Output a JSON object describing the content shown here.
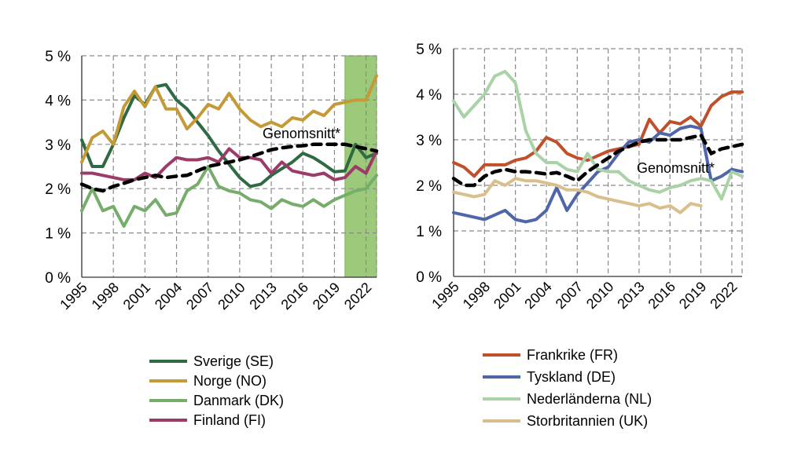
{
  "chart_data": [
    {
      "type": "line",
      "panel": "left",
      "ylim": [
        0,
        5
      ],
      "y_ticks": [
        "0 %",
        "1 %",
        "2 %",
        "3 %",
        "4 %",
        "5 %"
      ],
      "x_tick_labels": [
        "1995",
        "1998",
        "2001",
        "2004",
        "2007",
        "2010",
        "2013",
        "2016",
        "2019",
        "2022"
      ],
      "grid": true,
      "shaded_region": {
        "from": 2020,
        "to": 2023,
        "color": "#8cc063"
      },
      "annotation": "Genomsnitt*",
      "legend_position": "bottom",
      "x": [
        1995,
        1996,
        1997,
        1998,
        1999,
        2000,
        2001,
        2002,
        2003,
        2004,
        2005,
        2006,
        2007,
        2008,
        2009,
        2010,
        2011,
        2012,
        2013,
        2014,
        2015,
        2016,
        2017,
        2018,
        2019,
        2020,
        2021,
        2022,
        2023
      ],
      "series": [
        {
          "name": "Sverige (SE)",
          "color": "#2e6b43",
          "values": [
            3.1,
            2.5,
            2.5,
            3.0,
            3.6,
            4.1,
            3.9,
            4.3,
            4.35,
            4.0,
            3.8,
            3.5,
            3.2,
            2.85,
            2.55,
            2.25,
            2.05,
            2.1,
            2.3,
            2.45,
            2.6,
            2.8,
            2.7,
            2.55,
            2.38,
            2.4,
            3.0,
            2.7,
            2.8
          ]
        },
        {
          "name": "Norge (NO)",
          "color": "#c39a35",
          "values": [
            2.6,
            3.15,
            3.3,
            3.0,
            3.85,
            4.2,
            3.85,
            4.3,
            3.8,
            3.8,
            3.35,
            3.6,
            3.9,
            3.8,
            4.15,
            3.8,
            3.55,
            3.4,
            3.5,
            3.4,
            3.6,
            3.55,
            3.75,
            3.65,
            3.9,
            3.95,
            4.0,
            4.0,
            4.55
          ]
        },
        {
          "name": "Danmark (DK)",
          "color": "#76ad6b",
          "values": [
            1.5,
            2.0,
            1.5,
            1.6,
            1.15,
            1.6,
            1.5,
            1.75,
            1.4,
            1.45,
            1.95,
            2.1,
            2.5,
            2.05,
            1.95,
            1.9,
            1.75,
            1.7,
            1.55,
            1.75,
            1.65,
            1.6,
            1.75,
            1.6,
            1.75,
            1.85,
            1.95,
            2.0,
            2.3
          ]
        },
        {
          "name": "Finland (FI)",
          "color": "#9b3b6a",
          "values": [
            2.35,
            2.35,
            2.3,
            2.25,
            2.2,
            2.2,
            2.35,
            2.25,
            2.5,
            2.7,
            2.65,
            2.65,
            2.7,
            2.6,
            2.9,
            2.7,
            2.7,
            2.65,
            2.35,
            2.6,
            2.4,
            2.35,
            2.3,
            2.35,
            2.2,
            2.25,
            2.5,
            2.35,
            2.85
          ]
        }
      ],
      "average": {
        "values": [
          2.1,
          2.0,
          1.95,
          2.05,
          2.12,
          2.2,
          2.25,
          2.3,
          2.25,
          2.28,
          2.3,
          2.4,
          2.5,
          2.55,
          2.6,
          2.65,
          2.72,
          2.8,
          2.88,
          2.92,
          2.95,
          2.97,
          3.0,
          3.0,
          3.0,
          3.0,
          2.95,
          2.9,
          2.85
        ]
      }
    },
    {
      "type": "line",
      "panel": "right",
      "ylim": [
        0,
        5
      ],
      "y_ticks": [
        "0 %",
        "1 %",
        "2 %",
        "3 %",
        "4 %",
        "5 %"
      ],
      "x_tick_labels": [
        "1995",
        "1998",
        "2001",
        "2004",
        "2007",
        "2010",
        "2013",
        "2016",
        "2019",
        "2022"
      ],
      "grid": true,
      "annotation": "Genomsnitt*",
      "legend_position": "bottom",
      "x": [
        1995,
        1996,
        1997,
        1998,
        1999,
        2000,
        2001,
        2002,
        2003,
        2004,
        2005,
        2006,
        2007,
        2008,
        2009,
        2010,
        2011,
        2012,
        2013,
        2014,
        2015,
        2016,
        2017,
        2018,
        2019,
        2020,
        2021,
        2022,
        2023
      ],
      "series": [
        {
          "name": "Frankrike (FR)",
          "color": "#c0502c",
          "values": [
            2.5,
            2.4,
            2.2,
            2.45,
            2.45,
            2.45,
            2.55,
            2.6,
            2.75,
            3.05,
            2.95,
            2.7,
            2.6,
            2.55,
            2.65,
            2.75,
            2.8,
            2.85,
            2.9,
            3.45,
            3.15,
            3.4,
            3.35,
            3.5,
            3.3,
            3.75,
            3.95,
            4.05,
            4.05
          ]
        },
        {
          "name": "Tyskland (DE)",
          "color": "#4f67a8",
          "values": [
            1.4,
            1.35,
            1.3,
            1.25,
            1.35,
            1.45,
            1.25,
            1.2,
            1.25,
            1.45,
            1.95,
            1.45,
            1.8,
            2.05,
            2.3,
            2.4,
            2.7,
            2.95,
            3.0,
            2.95,
            3.15,
            3.1,
            3.25,
            3.3,
            3.25,
            2.1,
            2.2,
            2.35,
            2.3
          ]
        },
        {
          "name": "Nederländerna (NL)",
          "color": "#a9d3a6",
          "values": [
            3.85,
            3.5,
            3.75,
            4.0,
            4.4,
            4.5,
            4.25,
            3.2,
            2.7,
            2.5,
            2.5,
            2.35,
            2.3,
            2.7,
            2.35,
            2.3,
            2.3,
            2.1,
            2.0,
            1.9,
            1.85,
            1.95,
            2.0,
            2.1,
            2.15,
            2.1,
            1.7,
            2.3,
            2.2
          ]
        },
        {
          "name": "Storbritannien (UK)",
          "color": "#d9bf8b",
          "values": [
            1.85,
            1.8,
            1.75,
            1.8,
            2.1,
            2.0,
            2.15,
            2.1,
            2.1,
            2.05,
            2.0,
            1.9,
            1.9,
            1.85,
            1.75,
            1.7,
            1.65,
            1.6,
            1.55,
            1.6,
            1.5,
            1.55,
            1.4,
            1.6,
            1.55,
            null,
            null,
            null,
            null
          ]
        }
      ],
      "average": {
        "values": [
          2.15,
          2.0,
          2.0,
          2.2,
          2.3,
          2.35,
          2.3,
          2.3,
          2.28,
          2.25,
          2.28,
          2.2,
          2.1,
          2.3,
          2.45,
          2.6,
          2.75,
          2.85,
          2.95,
          3.0,
          3.0,
          3.0,
          3.0,
          3.05,
          3.1,
          2.7,
          2.8,
          2.85,
          2.9
        ]
      }
    }
  ]
}
